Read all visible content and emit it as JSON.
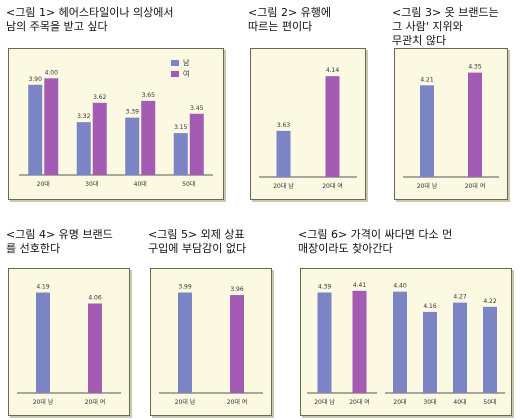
{
  "colors": {
    "male": "#7b84c4",
    "female": "#a35bb4"
  },
  "legend": {
    "male": "남",
    "female": "여"
  },
  "figures": [
    {
      "id": "fig1",
      "caption": "<그림 1> 헤어스타일이나 의상에서\n남의 주목을 받고 싶다",
      "chart_data": {
        "type": "bar",
        "categories": [
          "20대",
          "30대",
          "40대",
          "50대"
        ],
        "series": [
          {
            "name": "남",
            "values": [
              3.9,
              3.32,
              3.39,
              3.15
            ]
          },
          {
            "name": "여",
            "values": [
              4.0,
              3.62,
              3.65,
              3.45
            ]
          }
        ],
        "ylim": [
          2.5,
          4.3
        ]
      }
    },
    {
      "id": "fig2",
      "caption": "<그림 2> 유행에\n따르는 편이다",
      "chart_data": {
        "type": "bar",
        "categories": [
          "20대 남",
          "20대 여"
        ],
        "values": [
          3.63,
          4.14
        ],
        "ylim": [
          3.2,
          4.3
        ]
      }
    },
    {
      "id": "fig3",
      "caption": "<그림 3> 옷 브랜드는\n그 사람' 지위와\n무관치 않다",
      "chart_data": {
        "type": "bar",
        "categories": [
          "20대 남",
          "20대 여"
        ],
        "values": [
          4.21,
          4.35
        ],
        "ylim": [
          3.2,
          4.5
        ]
      }
    },
    {
      "id": "fig4",
      "caption": "<그림 4> 유명 브랜드\n를 선호한다",
      "chart_data": {
        "type": "bar",
        "categories": [
          "20대 남",
          "20대 여"
        ],
        "values": [
          4.19,
          4.06
        ],
        "ylim": [
          3.0,
          4.35
        ]
      }
    },
    {
      "id": "fig5",
      "caption": "<그림 5> 외제 상표\n구입에 부담감이 없다",
      "chart_data": {
        "type": "bar",
        "categories": [
          "20대 남",
          "20대 여"
        ],
        "values": [
          3.99,
          3.96
        ],
        "ylim": [
          2.8,
          4.15
        ]
      }
    },
    {
      "id": "fig6",
      "caption": "<그림 6> 가격이 싸다면 다소 먼\n매장이라도 찾아간다",
      "chart_data": [
        {
          "type": "bar",
          "categories": [
            "20대 남",
            "20대 여"
          ],
          "values": [
            4.39,
            4.41
          ],
          "ylim": [
            3.2,
            4.55
          ]
        },
        {
          "type": "bar",
          "categories": [
            "20대",
            "30대",
            "40대",
            "50대"
          ],
          "values": [
            4.4,
            4.16,
            4.27,
            4.22
          ],
          "ylim": [
            3.2,
            4.55
          ]
        }
      ]
    }
  ]
}
